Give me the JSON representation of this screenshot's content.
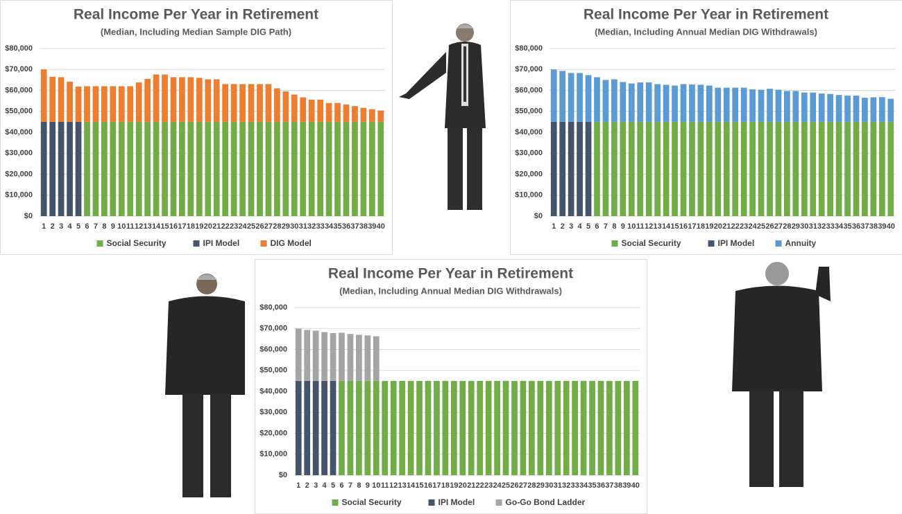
{
  "chart_data": [
    {
      "type": "bar",
      "stacked": true,
      "title": "Real Income Per Year in Retirement",
      "subtitle": "(Median, Including Median Sample DIG Path)",
      "categories": [
        1,
        2,
        3,
        4,
        5,
        6,
        7,
        8,
        9,
        10,
        11,
        12,
        13,
        14,
        15,
        16,
        17,
        18,
        19,
        20,
        21,
        22,
        23,
        24,
        25,
        26,
        27,
        28,
        29,
        30,
        31,
        32,
        33,
        34,
        35,
        36,
        37,
        38,
        39,
        40
      ],
      "series": [
        {
          "name": "Social Security",
          "color": "#70ad47",
          "values": [
            null,
            null,
            null,
            null,
            null,
            45000,
            45000,
            45000,
            45000,
            45000,
            45000,
            45000,
            45000,
            45000,
            45000,
            45000,
            45000,
            45000,
            45000,
            45000,
            45000,
            45000,
            45000,
            45000,
            45000,
            45000,
            45000,
            45000,
            45000,
            45000,
            45000,
            45000,
            45000,
            45000,
            45000,
            45000,
            45000,
            45000,
            45000,
            45000
          ]
        },
        {
          "name": "IPI Model",
          "color": "#44546a",
          "values": [
            45000,
            45000,
            45000,
            45000,
            45000,
            null,
            null,
            null,
            null,
            null,
            null,
            null,
            null,
            null,
            null,
            null,
            null,
            null,
            null,
            null,
            null,
            null,
            null,
            null,
            null,
            null,
            null,
            null,
            null,
            null,
            null,
            null,
            null,
            null,
            null,
            null,
            null,
            null,
            null,
            null
          ]
        },
        {
          "name": "DIG Model",
          "color": "#ed7d31",
          "values": [
            25000,
            21500,
            21300,
            19200,
            16800,
            17000,
            17000,
            17000,
            17000,
            17000,
            17000,
            18800,
            20500,
            22600,
            22600,
            21300,
            21300,
            21300,
            21000,
            20300,
            20300,
            18000,
            18000,
            18000,
            18000,
            18000,
            18000,
            16000,
            14500,
            13000,
            11700,
            10600,
            10600,
            9000,
            9000,
            8300,
            7500,
            6700,
            6000,
            5400
          ]
        }
      ],
      "ylim": [
        0,
        80000
      ],
      "yticks": [
        {
          "value": 0,
          "label": "$0"
        },
        {
          "value": 10000,
          "label": "$10,000"
        },
        {
          "value": 20000,
          "label": "$20,000"
        },
        {
          "value": 30000,
          "label": "$30,000"
        },
        {
          "value": 40000,
          "label": "$40,000"
        },
        {
          "value": 50000,
          "label": "$50,000"
        },
        {
          "value": 60000,
          "label": "$60,000"
        },
        {
          "value": 70000,
          "label": "$70,000"
        },
        {
          "value": 80000,
          "label": "$80,000"
        }
      ],
      "grid": true,
      "legend": "bottom"
    },
    {
      "type": "bar",
      "stacked": true,
      "title": "Real Income Per Year in Retirement",
      "subtitle": "(Median, Including Annual Median DIG Withdrawals)",
      "categories": [
        1,
        2,
        3,
        4,
        5,
        6,
        7,
        8,
        9,
        10,
        11,
        12,
        13,
        14,
        15,
        16,
        17,
        18,
        19,
        20,
        21,
        22,
        23,
        24,
        25,
        26,
        27,
        28,
        29,
        30,
        31,
        32,
        33,
        34,
        35,
        36,
        37,
        38,
        39,
        40
      ],
      "series": [
        {
          "name": "Social Security",
          "color": "#70ad47",
          "values": [
            null,
            null,
            null,
            null,
            null,
            45000,
            45000,
            45000,
            45000,
            45000,
            45000,
            45000,
            45000,
            45000,
            45000,
            45000,
            45000,
            45000,
            45000,
            45000,
            45000,
            45000,
            45000,
            45000,
            45000,
            45000,
            45000,
            45000,
            45000,
            45000,
            45000,
            45000,
            45000,
            45000,
            45000,
            45000,
            45000,
            45000,
            45000,
            45000
          ]
        },
        {
          "name": "IPI Model",
          "color": "#44546a",
          "values": [
            45000,
            45000,
            45000,
            45000,
            45000,
            null,
            null,
            null,
            null,
            null,
            null,
            null,
            null,
            null,
            null,
            null,
            null,
            null,
            null,
            null,
            null,
            null,
            null,
            null,
            null,
            null,
            null,
            null,
            null,
            null,
            null,
            null,
            null,
            null,
            null,
            null,
            null,
            null,
            null,
            null
          ]
        },
        {
          "name": "Annuity",
          "color": "#5b9bd5",
          "values": [
            25000,
            24300,
            23300,
            23300,
            22300,
            21300,
            20000,
            20300,
            19000,
            18300,
            18800,
            18800,
            18000,
            17700,
            17300,
            18000,
            17800,
            17700,
            17300,
            16300,
            16300,
            16300,
            16300,
            15500,
            15300,
            15800,
            15300,
            14700,
            14700,
            14000,
            14000,
            13500,
            13300,
            12800,
            12500,
            12500,
            11500,
            11700,
            11800,
            11000
          ]
        }
      ],
      "ylim": [
        0,
        80000
      ],
      "yticks": [
        {
          "value": 0,
          "label": "$0"
        },
        {
          "value": 10000,
          "label": "$10,000"
        },
        {
          "value": 20000,
          "label": "$20,000"
        },
        {
          "value": 30000,
          "label": "$30,000"
        },
        {
          "value": 40000,
          "label": "$40,000"
        },
        {
          "value": 50000,
          "label": "$50,000"
        },
        {
          "value": 60000,
          "label": "$60,000"
        },
        {
          "value": 70000,
          "label": "$70,000"
        },
        {
          "value": 80000,
          "label": "$80,000"
        }
      ],
      "grid": true,
      "legend": "bottom"
    },
    {
      "type": "bar",
      "stacked": true,
      "title": "Real Income Per Year in Retirement",
      "subtitle": "(Median, Including Annual Median DIG Withdrawals)",
      "categories": [
        1,
        2,
        3,
        4,
        5,
        6,
        7,
        8,
        9,
        10,
        11,
        12,
        13,
        14,
        15,
        16,
        17,
        18,
        19,
        20,
        21,
        22,
        23,
        24,
        25,
        26,
        27,
        28,
        29,
        30,
        31,
        32,
        33,
        34,
        35,
        36,
        37,
        38,
        39,
        40
      ],
      "series": [
        {
          "name": "Social Security",
          "color": "#70ad47",
          "values": [
            null,
            null,
            null,
            null,
            null,
            45000,
            45000,
            45000,
            45000,
            45000,
            45000,
            45000,
            45000,
            45000,
            45000,
            45000,
            45000,
            45000,
            45000,
            45000,
            45000,
            45000,
            45000,
            45000,
            45000,
            45000,
            45000,
            45000,
            45000,
            45000,
            45000,
            45000,
            45000,
            45000,
            45000,
            45000,
            45000,
            45000,
            45000,
            45000
          ]
        },
        {
          "name": "IPI Model",
          "color": "#44546a",
          "values": [
            45000,
            45000,
            45000,
            45000,
            45000,
            null,
            null,
            null,
            null,
            null,
            null,
            null,
            null,
            null,
            null,
            null,
            null,
            null,
            null,
            null,
            null,
            null,
            null,
            null,
            null,
            null,
            null,
            null,
            null,
            null,
            null,
            null,
            null,
            null,
            null,
            null,
            null,
            null,
            null,
            null
          ]
        },
        {
          "name": "Go-Go Bond Ladder",
          "color": "#a5a5a5",
          "values": [
            25000,
            24300,
            24000,
            23300,
            22800,
            23000,
            22400,
            22000,
            21700,
            21300,
            null,
            null,
            null,
            null,
            null,
            null,
            null,
            null,
            null,
            null,
            null,
            null,
            null,
            null,
            null,
            null,
            null,
            null,
            null,
            null,
            null,
            null,
            null,
            null,
            null,
            null,
            null,
            null,
            null,
            null
          ]
        }
      ],
      "ylim": [
        0,
        80000
      ],
      "yticks": [
        {
          "value": 0,
          "label": "$0"
        },
        {
          "value": 10000,
          "label": "$10,000"
        },
        {
          "value": 20000,
          "label": "$20,000"
        },
        {
          "value": 30000,
          "label": "$30,000"
        },
        {
          "value": 40000,
          "label": "$40,000"
        },
        {
          "value": 50000,
          "label": "$50,000"
        },
        {
          "value": 60000,
          "label": "$60,000"
        },
        {
          "value": 70000,
          "label": "$70,000"
        },
        {
          "value": 80000,
          "label": "$80,000"
        }
      ],
      "grid": true,
      "legend": "bottom"
    }
  ]
}
